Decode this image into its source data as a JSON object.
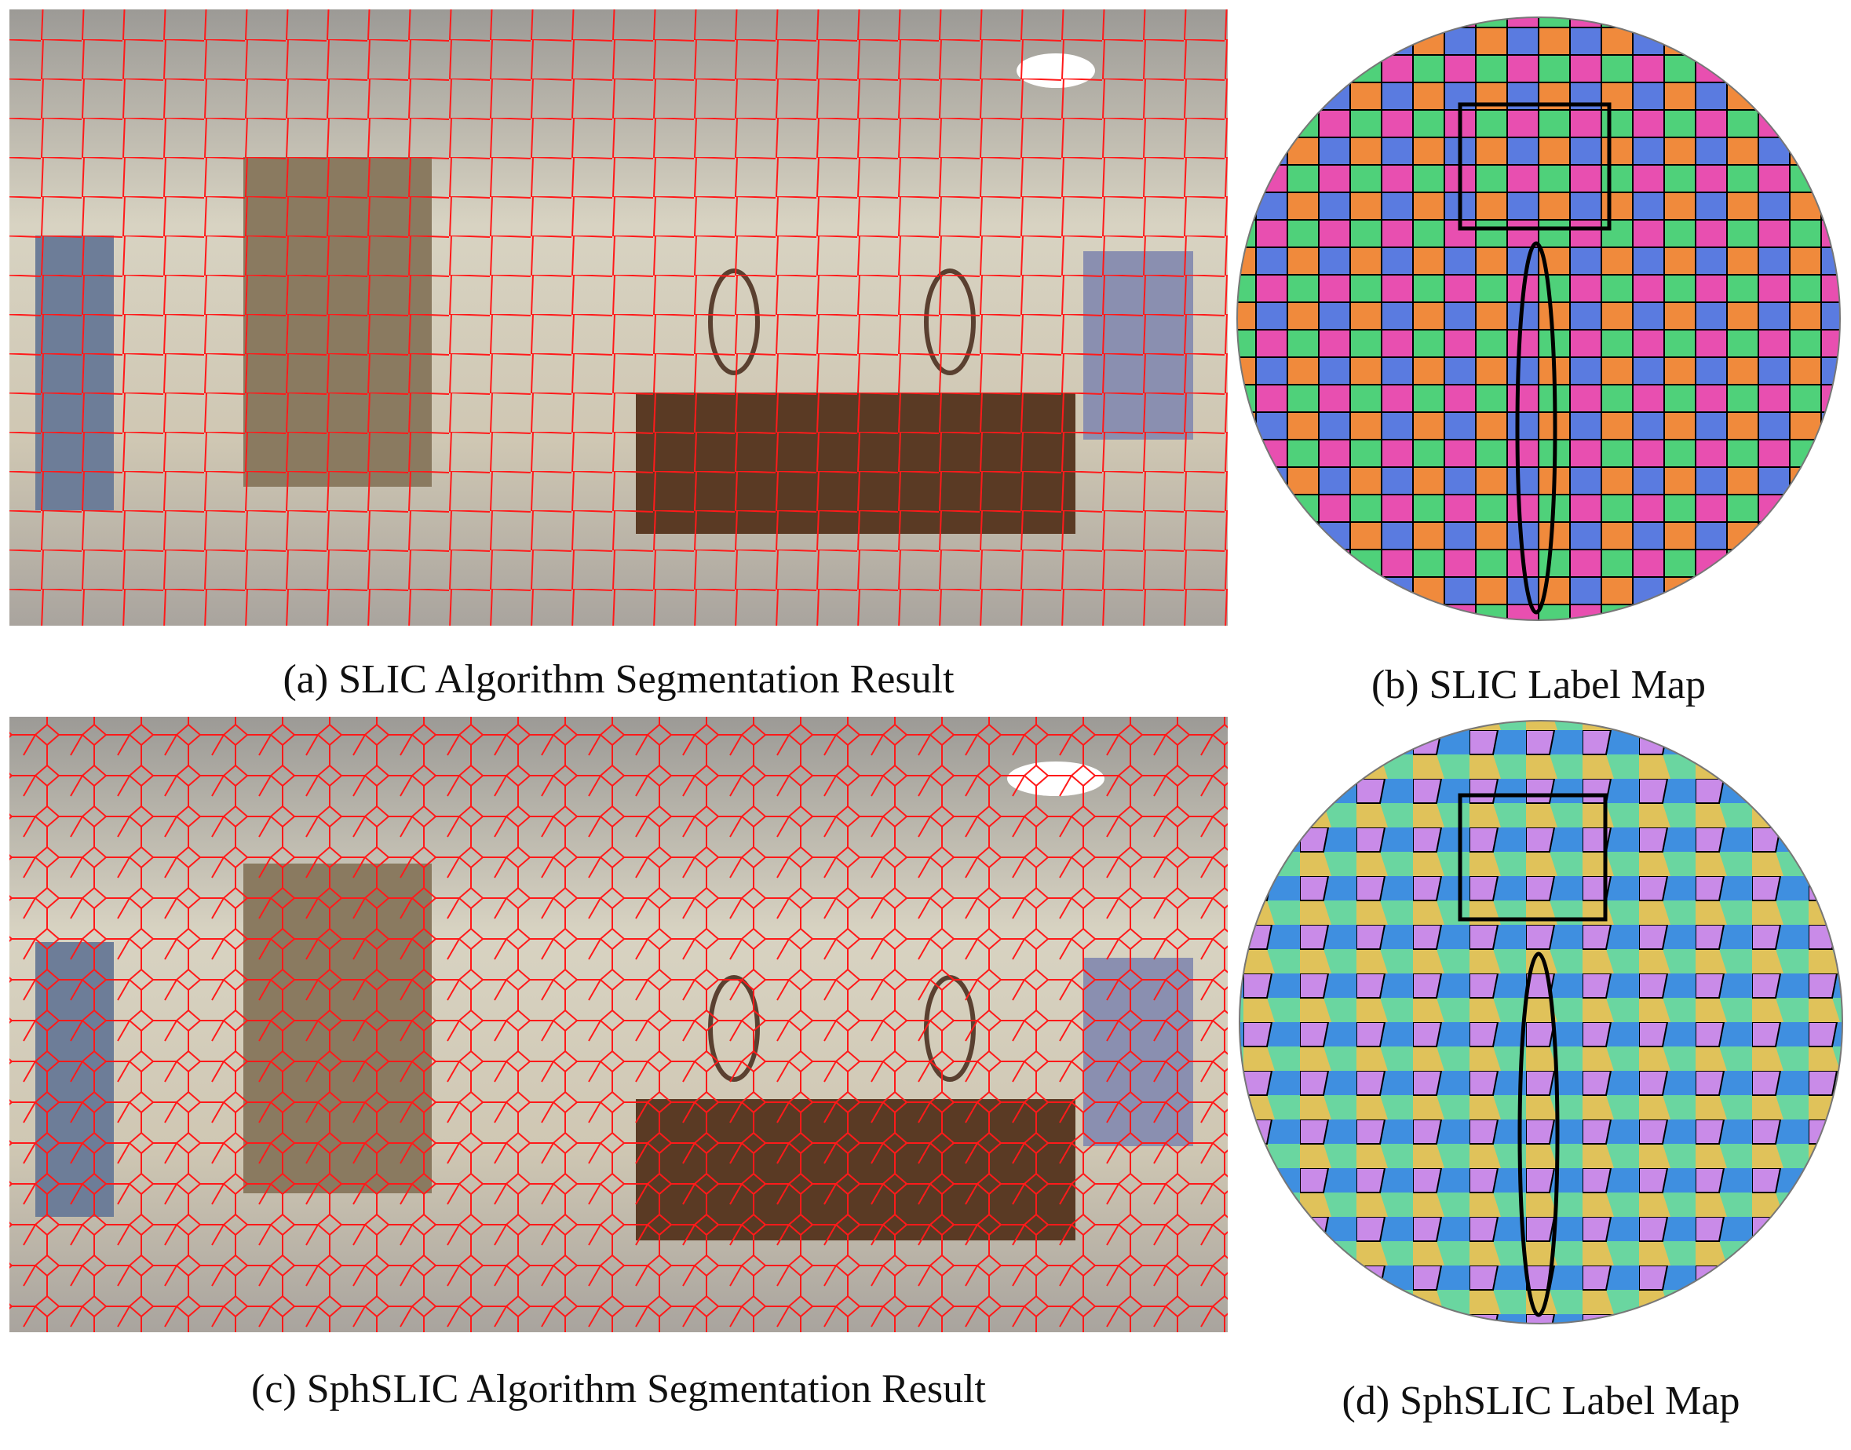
{
  "figure": {
    "panels": [
      {
        "caption": "(a) SLIC Algorithm Segmentation Result"
      },
      {
        "caption": "(b) SLIC Label Map"
      },
      {
        "caption": "(c) SphSLIC Algorithm Segmentation Result"
      },
      {
        "caption": "(d) SphSLIC Label Map"
      }
    ]
  }
}
